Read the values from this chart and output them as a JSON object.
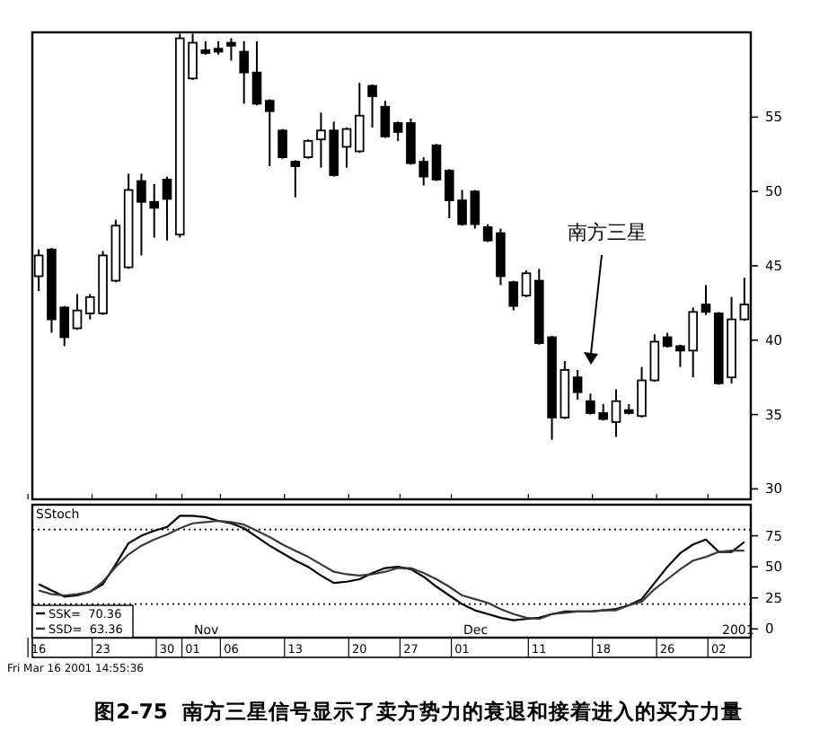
{
  "chart_data": [
    {
      "type": "candlestick",
      "tick_labels": "y",
      "categories": [
        "16",
        null,
        null,
        null,
        null,
        "23",
        null,
        null,
        null,
        null,
        "30",
        null,
        "01",
        null,
        null,
        "06",
        null,
        null,
        null,
        null,
        "13",
        null,
        null,
        null,
        null,
        "20",
        null,
        null,
        null,
        "27",
        null,
        null,
        null,
        "01",
        null,
        null,
        null,
        null,
        null,
        "11",
        null,
        null,
        null,
        null,
        "18",
        null,
        null,
        null,
        null,
        "26",
        null,
        null,
        null,
        "02",
        null,
        null
      ],
      "ohlc": [
        [
          44.3,
          46.1,
          43.3,
          45.7
        ],
        [
          46.1,
          46.2,
          40.5,
          41.4
        ],
        [
          42.2,
          42.3,
          39.6,
          40.2
        ],
        [
          40.8,
          43.1,
          40.7,
          42.0
        ],
        [
          41.8,
          43.1,
          41.4,
          42.9
        ],
        [
          41.8,
          46.0,
          41.7,
          45.7
        ],
        [
          44.0,
          48.1,
          43.9,
          47.7
        ],
        [
          44.9,
          51.2,
          44.8,
          50.1
        ],
        [
          50.7,
          51.2,
          45.7,
          49.3
        ],
        [
          49.3,
          50.5,
          46.9,
          48.9
        ],
        [
          50.8,
          51.0,
          46.7,
          49.5
        ],
        [
          47.1,
          60.6,
          46.9,
          60.3
        ],
        [
          57.6,
          60.6,
          57.5,
          60.0
        ],
        [
          59.5,
          60.1,
          59.2,
          59.3
        ],
        [
          59.6,
          60.1,
          59.2,
          59.4
        ],
        [
          60.0,
          60.3,
          58.8,
          59.8
        ],
        [
          59.4,
          60.1,
          55.9,
          58.0
        ],
        [
          58.0,
          60.1,
          55.8,
          55.9
        ],
        [
          56.1,
          56.2,
          51.7,
          55.4
        ],
        [
          54.1,
          54.2,
          52.2,
          52.3
        ],
        [
          52.0,
          52.1,
          49.6,
          51.7
        ],
        [
          52.3,
          53.5,
          52.2,
          53.4
        ],
        [
          53.5,
          55.3,
          51.6,
          54.1
        ],
        [
          54.1,
          54.7,
          51.0,
          51.1
        ],
        [
          53.0,
          54.3,
          51.6,
          54.2
        ],
        [
          52.7,
          57.3,
          52.6,
          55.1
        ],
        [
          57.1,
          57.2,
          54.3,
          56.4
        ],
        [
          55.7,
          56.1,
          53.6,
          53.7
        ],
        [
          54.6,
          54.7,
          53.4,
          54.0
        ],
        [
          54.6,
          54.9,
          51.8,
          51.9
        ],
        [
          52.0,
          52.3,
          50.4,
          51.0
        ],
        [
          53.1,
          53.2,
          50.7,
          50.8
        ],
        [
          51.4,
          51.5,
          48.2,
          49.4
        ],
        [
          49.4,
          50.1,
          47.7,
          47.8
        ],
        [
          50.0,
          50.1,
          47.5,
          47.8
        ],
        [
          47.6,
          47.8,
          46.6,
          46.7
        ],
        [
          47.2,
          47.5,
          43.7,
          44.3
        ],
        [
          43.9,
          44.0,
          42.0,
          42.3
        ],
        [
          43.0,
          44.7,
          42.9,
          44.5
        ],
        [
          44.0,
          44.8,
          39.7,
          39.8
        ],
        [
          40.2,
          40.3,
          33.3,
          34.8
        ],
        [
          34.8,
          38.6,
          34.7,
          38.0
        ],
        [
          37.5,
          38.0,
          36.0,
          36.5
        ],
        [
          35.9,
          36.4,
          35.0,
          35.1
        ],
        [
          35.1,
          35.7,
          34.6,
          34.7
        ],
        [
          34.5,
          36.7,
          33.5,
          35.9
        ],
        [
          35.3,
          35.7,
          35.0,
          35.1
        ],
        [
          34.9,
          38.2,
          34.8,
          37.3
        ],
        [
          37.3,
          40.4,
          37.2,
          39.9
        ],
        [
          40.2,
          40.5,
          39.5,
          39.6
        ],
        [
          39.6,
          39.7,
          38.2,
          39.3
        ],
        [
          39.3,
          42.2,
          37.5,
          41.9
        ],
        [
          42.4,
          43.7,
          41.7,
          41.9
        ],
        [
          41.8,
          41.9,
          37.0,
          37.1
        ],
        [
          37.5,
          42.9,
          37.1,
          41.4
        ],
        [
          41.4,
          44.2,
          41.3,
          42.4
        ]
      ],
      "ylim": [
        29.3,
        60.7
      ],
      "yticks": [
        30,
        35,
        40,
        45,
        50,
        55
      ],
      "annotations": [
        "南方三星"
      ]
    },
    {
      "type": "line",
      "title": "SStoch",
      "legend": "bottom left",
      "categories": [
        "16",
        null,
        null,
        null,
        null,
        "23",
        null,
        null,
        null,
        null,
        "30",
        null,
        "01",
        null,
        null,
        "06",
        null,
        null,
        null,
        null,
        "13",
        null,
        null,
        null,
        null,
        "20",
        null,
        null,
        null,
        "27",
        null,
        null,
        null,
        "01",
        null,
        null,
        null,
        null,
        null,
        "11",
        null,
        null,
        null,
        null,
        "18",
        null,
        null,
        null,
        null,
        "26",
        null,
        null,
        null,
        "02",
        null,
        null
      ],
      "series": [
        {
          "name": "SSK=  70.36",
          "color": "#000000",
          "values": [
            36,
            31,
            26,
            27,
            30,
            36,
            52,
            69,
            75,
            79,
            82,
            91,
            91,
            90,
            87,
            85,
            81,
            74,
            67,
            61,
            55,
            50,
            43,
            37,
            38,
            40,
            45,
            49,
            50,
            48,
            42,
            34,
            27,
            20,
            15,
            12,
            9,
            7,
            8,
            9,
            12,
            14,
            14,
            14,
            15,
            16,
            19,
            24,
            37,
            50,
            61,
            68,
            72,
            62,
            62,
            70
          ]
        },
        {
          "name": "SSD=  63.36",
          "color": "#3a3a3a",
          "values": [
            31,
            28,
            27,
            28,
            30,
            38,
            50,
            60,
            67,
            72,
            76,
            81,
            85,
            86,
            87,
            86,
            84,
            79,
            74,
            68,
            63,
            58,
            52,
            46,
            44,
            43,
            44,
            46,
            49,
            49,
            45,
            40,
            34,
            27,
            24,
            21,
            16,
            12,
            9,
            8,
            12,
            13,
            14,
            14,
            15,
            15,
            19,
            22,
            32,
            40,
            48,
            55,
            58,
            62,
            63,
            63
          ]
        }
      ],
      "ylim": [
        -7,
        100
      ],
      "yticks": [
        0,
        25,
        50,
        75
      ],
      "ref_lines": [
        {
          "axis": "y",
          "value": 80,
          "line_style": "dotted"
        },
        {
          "axis": "y",
          "value": 20,
          "line_style": "dotted"
        }
      ],
      "annotations": [
        "Nov",
        "Dec",
        "2001",
        "Fri Mar 16 2001 14:55:36",
        "图2-75  南方三星信号显示了卖方势力的衰退和接着进入的买方力量"
      ]
    }
  ]
}
